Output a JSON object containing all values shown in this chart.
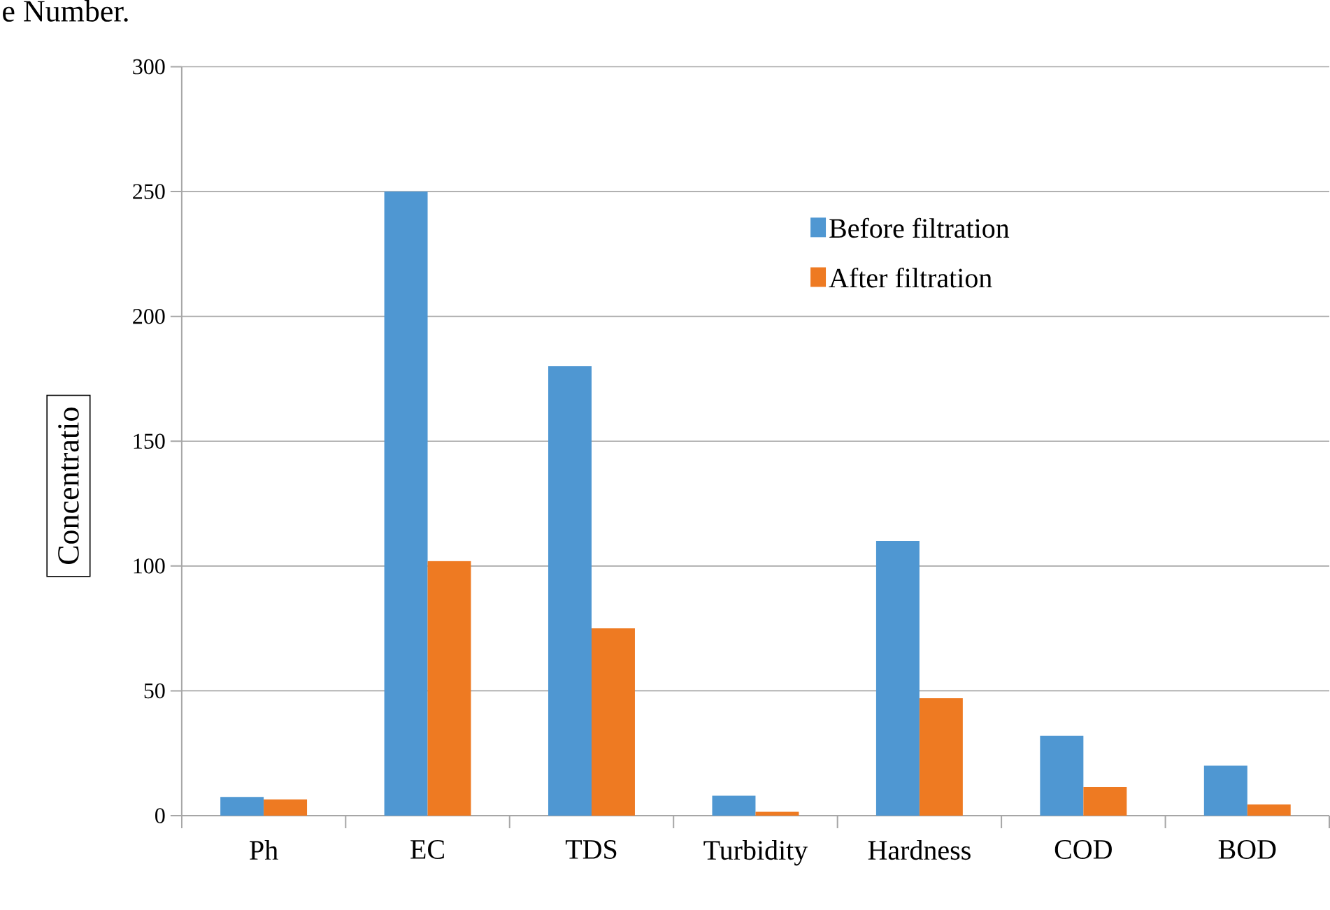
{
  "chart_data": {
    "type": "bar",
    "categories": [
      "Ph",
      "EC",
      "TDS",
      "Turbidity",
      "Hardness",
      "COD",
      "BOD"
    ],
    "series": [
      {
        "name": "Before filtration",
        "color": "#4f97d2",
        "values": [
          7.5,
          250,
          180,
          8,
          110,
          32,
          20
        ]
      },
      {
        "name": "After filtration",
        "color": "#ee7a22",
        "values": [
          6.5,
          102,
          75,
          1.5,
          47,
          11.5,
          4.5
        ]
      }
    ],
    "ylabel": "Concentratio",
    "annotations": [
      "e Number."
    ],
    "ylim": [
      0,
      300
    ],
    "yticks": [
      0,
      50,
      100,
      150,
      200,
      250,
      300
    ],
    "grid": "y",
    "legend": "top right"
  }
}
